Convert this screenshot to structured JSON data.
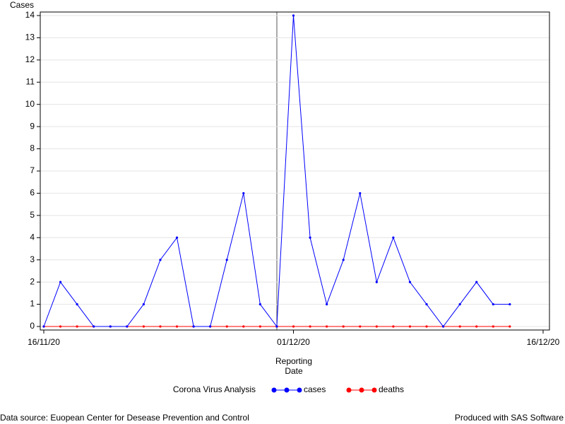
{
  "chart_data": {
    "type": "line",
    "y_label": "Cases",
    "x_label_lines": [
      "Reporting",
      "Date"
    ],
    "legend_title": "Corona Virus Analysis",
    "footnote_left": "Data source: Euopean Center for Desease Prevention and Control",
    "footnote_right": "Produced with SAS Software",
    "x": [
      "16/11/20",
      "17/11/20",
      "18/11/20",
      "19/11/20",
      "20/11/20",
      "21/11/20",
      "22/11/20",
      "23/11/20",
      "24/11/20",
      "25/11/20",
      "26/11/20",
      "27/11/20",
      "28/11/20",
      "29/11/20",
      "30/11/20",
      "01/12/20",
      "02/12/20",
      "03/12/20",
      "04/12/20",
      "05/12/20",
      "06/12/20",
      "07/12/20",
      "08/12/20",
      "09/12/20",
      "10/12/20",
      "11/12/20",
      "12/12/20",
      "13/12/20",
      "14/12/20"
    ],
    "series": [
      {
        "name": "cases",
        "color": "#0000ff",
        "values": [
          0,
          2,
          1,
          0,
          0,
          0,
          1,
          3,
          4,
          0,
          0,
          3,
          6,
          1,
          0,
          14,
          4,
          1,
          3,
          6,
          2,
          4,
          2,
          1,
          0,
          1,
          2,
          1,
          1
        ]
      },
      {
        "name": "deaths",
        "color": "#ff0000",
        "values": [
          0,
          0,
          0,
          0,
          0,
          0,
          0,
          0,
          0,
          0,
          0,
          0,
          0,
          0,
          0,
          0,
          0,
          0,
          0,
          0,
          0,
          0,
          0,
          0,
          0,
          0,
          0,
          0,
          0
        ]
      }
    ],
    "xlim": [
      "16/11/20",
      "16/12/20"
    ],
    "xticks": [
      "16/11/20",
      "01/12/20",
      "16/12/20"
    ],
    "ylim": [
      0,
      14
    ],
    "yticks": [
      0,
      1,
      2,
      3,
      4,
      5,
      6,
      7,
      8,
      9,
      10,
      11,
      12,
      13,
      14
    ],
    "grid": true
  }
}
